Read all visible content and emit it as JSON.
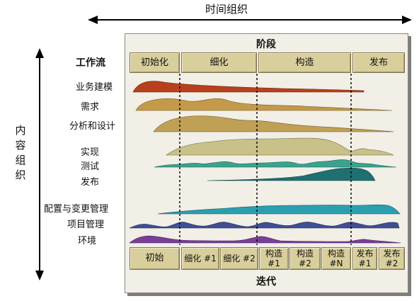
{
  "top_axis_label": "时间组织",
  "side_axis_label": "内容组织",
  "panel": {
    "phase_header": "阶段",
    "iteration_footer": "迭代",
    "workflow_header": "工作流"
  },
  "phases": [
    "初始化",
    "细化",
    "构造",
    "发布"
  ],
  "workflows": [
    "业务建模",
    "需求",
    "分析和设计",
    "实现",
    "测试",
    "发布",
    "配置与变更管理",
    "项目管理",
    "环境"
  ],
  "iterations": [
    "初始",
    "细化 #1",
    "细化 #2",
    "构造\n#1",
    "构造\n#2",
    "构造\n#N",
    "发布\n#1",
    "发布\n#2"
  ],
  "colors": {
    "business_modeling": "#b8401c",
    "requirements": "#c49a4a",
    "analysis_design": "#c0a054",
    "implementation": "#c8c188",
    "test": "#3aa38f",
    "deployment": "#1f6f73",
    "config_change": "#2a9fb0",
    "project_mgmt": "#3e4f95",
    "environment": "#7a3e9a"
  }
}
